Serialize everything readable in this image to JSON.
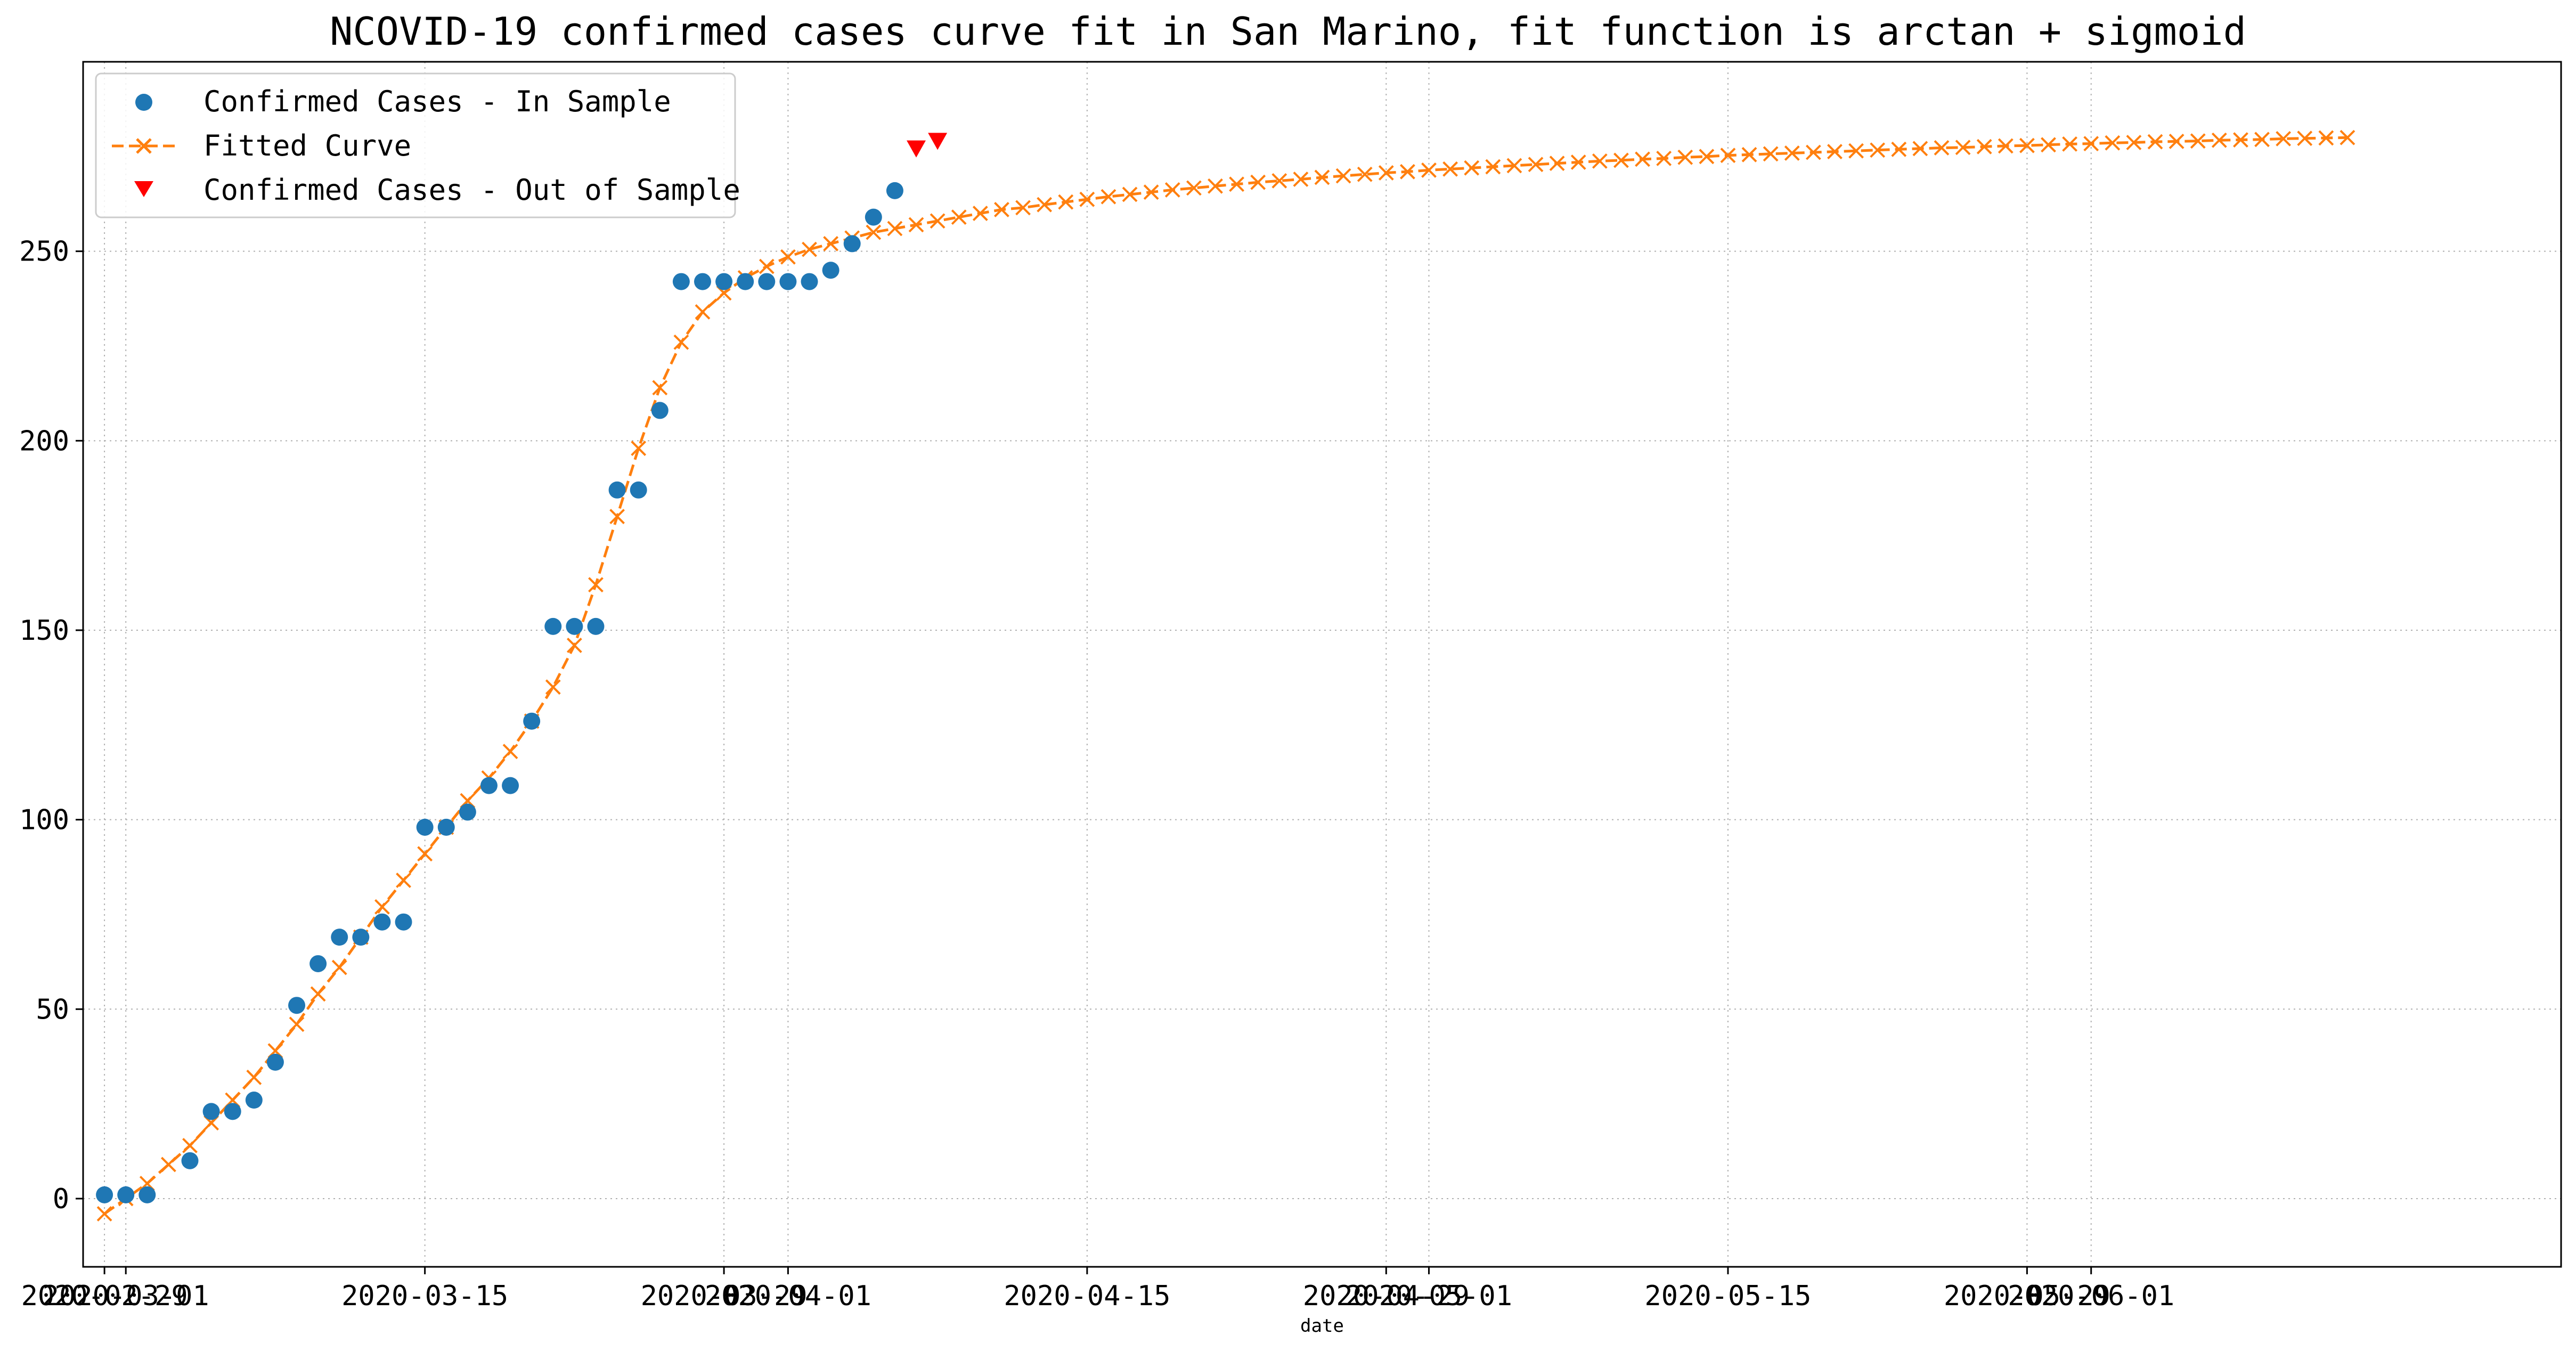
{
  "chart_data": {
    "type": "line",
    "title": "NCOVID-19 confirmed cases curve fit in San Marino, fit function is arctan + sigmoid",
    "xlabel": "date",
    "ylabel": "",
    "grid": true,
    "legend_position": "top-left",
    "xlim": [
      "2020-02-28",
      "2020-06-23"
    ],
    "ylim": [
      -18,
      300
    ],
    "y_ticks": [
      0,
      50,
      100,
      150,
      200,
      250
    ],
    "x_ticks": [
      {
        "date": "2020-03-01",
        "label": "2020-03-01"
      },
      {
        "date": "2020-03-15",
        "label": "2020-03-15"
      },
      {
        "date": "2020-04-01",
        "label": "2020-04-01"
      },
      {
        "date": "2020-04-15",
        "label": "2020-04-15"
      },
      {
        "date": "2020-05-01",
        "label": "2020-05-01"
      },
      {
        "date": "2020-05-15",
        "label": "2020-05-15"
      },
      {
        "date": "2020-06-01",
        "label": "2020-06-01"
      }
    ],
    "x_ticks_secondary": [
      {
        "date": "2020-02-29",
        "label": "2020-02-29"
      },
      {
        "date": "2020-03-29",
        "label": "2020-03-29"
      },
      {
        "date": "2020-04-29",
        "label": "2020-04-29"
      },
      {
        "date": "2020-05-29",
        "label": "2020-05-29"
      }
    ],
    "series": [
      {
        "name": "Confirmed Cases - In Sample",
        "marker": "circle",
        "color": "#1f77b4",
        "points": [
          [
            "2020-02-29",
            1
          ],
          [
            "2020-03-01",
            1
          ],
          [
            "2020-03-02",
            1
          ],
          [
            "2020-03-04",
            10
          ],
          [
            "2020-03-05",
            23
          ],
          [
            "2020-03-06",
            23
          ],
          [
            "2020-03-07",
            26
          ],
          [
            "2020-03-08",
            36
          ],
          [
            "2020-03-09",
            51
          ],
          [
            "2020-03-10",
            62
          ],
          [
            "2020-03-11",
            69
          ],
          [
            "2020-03-12",
            69
          ],
          [
            "2020-03-13",
            73
          ],
          [
            "2020-03-14",
            73
          ],
          [
            "2020-03-15",
            98
          ],
          [
            "2020-03-16",
            98
          ],
          [
            "2020-03-17",
            102
          ],
          [
            "2020-03-18",
            109
          ],
          [
            "2020-03-19",
            109
          ],
          [
            "2020-03-20",
            126
          ],
          [
            "2020-03-21",
            151
          ],
          [
            "2020-03-22",
            151
          ],
          [
            "2020-03-23",
            151
          ],
          [
            "2020-03-24",
            187
          ],
          [
            "2020-03-25",
            187
          ],
          [
            "2020-03-26",
            208
          ],
          [
            "2020-03-27",
            242
          ],
          [
            "2020-03-28",
            242
          ],
          [
            "2020-03-29",
            242
          ],
          [
            "2020-03-30",
            242
          ],
          [
            "2020-03-31",
            242
          ],
          [
            "2020-04-01",
            242
          ],
          [
            "2020-04-02",
            242
          ],
          [
            "2020-04-03",
            245
          ],
          [
            "2020-04-04",
            252
          ],
          [
            "2020-04-05",
            259
          ],
          [
            "2020-04-06",
            266
          ]
        ]
      },
      {
        "name": "Fitted Curve",
        "marker": "x",
        "line": "dashed",
        "color": "#ff7f0e",
        "start": "2020-02-29",
        "values": [
          -4,
          0,
          4,
          9,
          14,
          20,
          26,
          32,
          39,
          46,
          54,
          61,
          69,
          77,
          84,
          91,
          98,
          105,
          111,
          118,
          126,
          135,
          146,
          162,
          180,
          198,
          214,
          226,
          234,
          239,
          243,
          246,
          248.5,
          250.5,
          252,
          253.5,
          255,
          256,
          257,
          258,
          259,
          260,
          261,
          261.5,
          262.3,
          263,
          263.7,
          264.4,
          265,
          265.6,
          266.2,
          266.7,
          267.2,
          267.7,
          268.2,
          268.6,
          269,
          269.5,
          269.9,
          270.3,
          270.7,
          271,
          271.4,
          271.7,
          272,
          272.3,
          272.6,
          272.9,
          273.2,
          273.5,
          273.8,
          274,
          274.3,
          274.5,
          274.8,
          275,
          275.3,
          275.5,
          275.7,
          275.9,
          276.1,
          276.3,
          276.5,
          276.7,
          276.9,
          277.1,
          277.3,
          277.4,
          277.6,
          277.8,
          277.9,
          278.1,
          278.3,
          278.4,
          278.6,
          278.7,
          278.9,
          279,
          279.1,
          279.3,
          279.4,
          279.5,
          279.7,
          279.8,
          279.9,
          280
        ]
      },
      {
        "name": "Confirmed Cases - Out of Sample",
        "marker": "triangle-down",
        "color": "#ff0000",
        "points": [
          [
            "2020-04-07",
            277
          ],
          [
            "2020-04-08",
            279
          ]
        ]
      }
    ]
  }
}
